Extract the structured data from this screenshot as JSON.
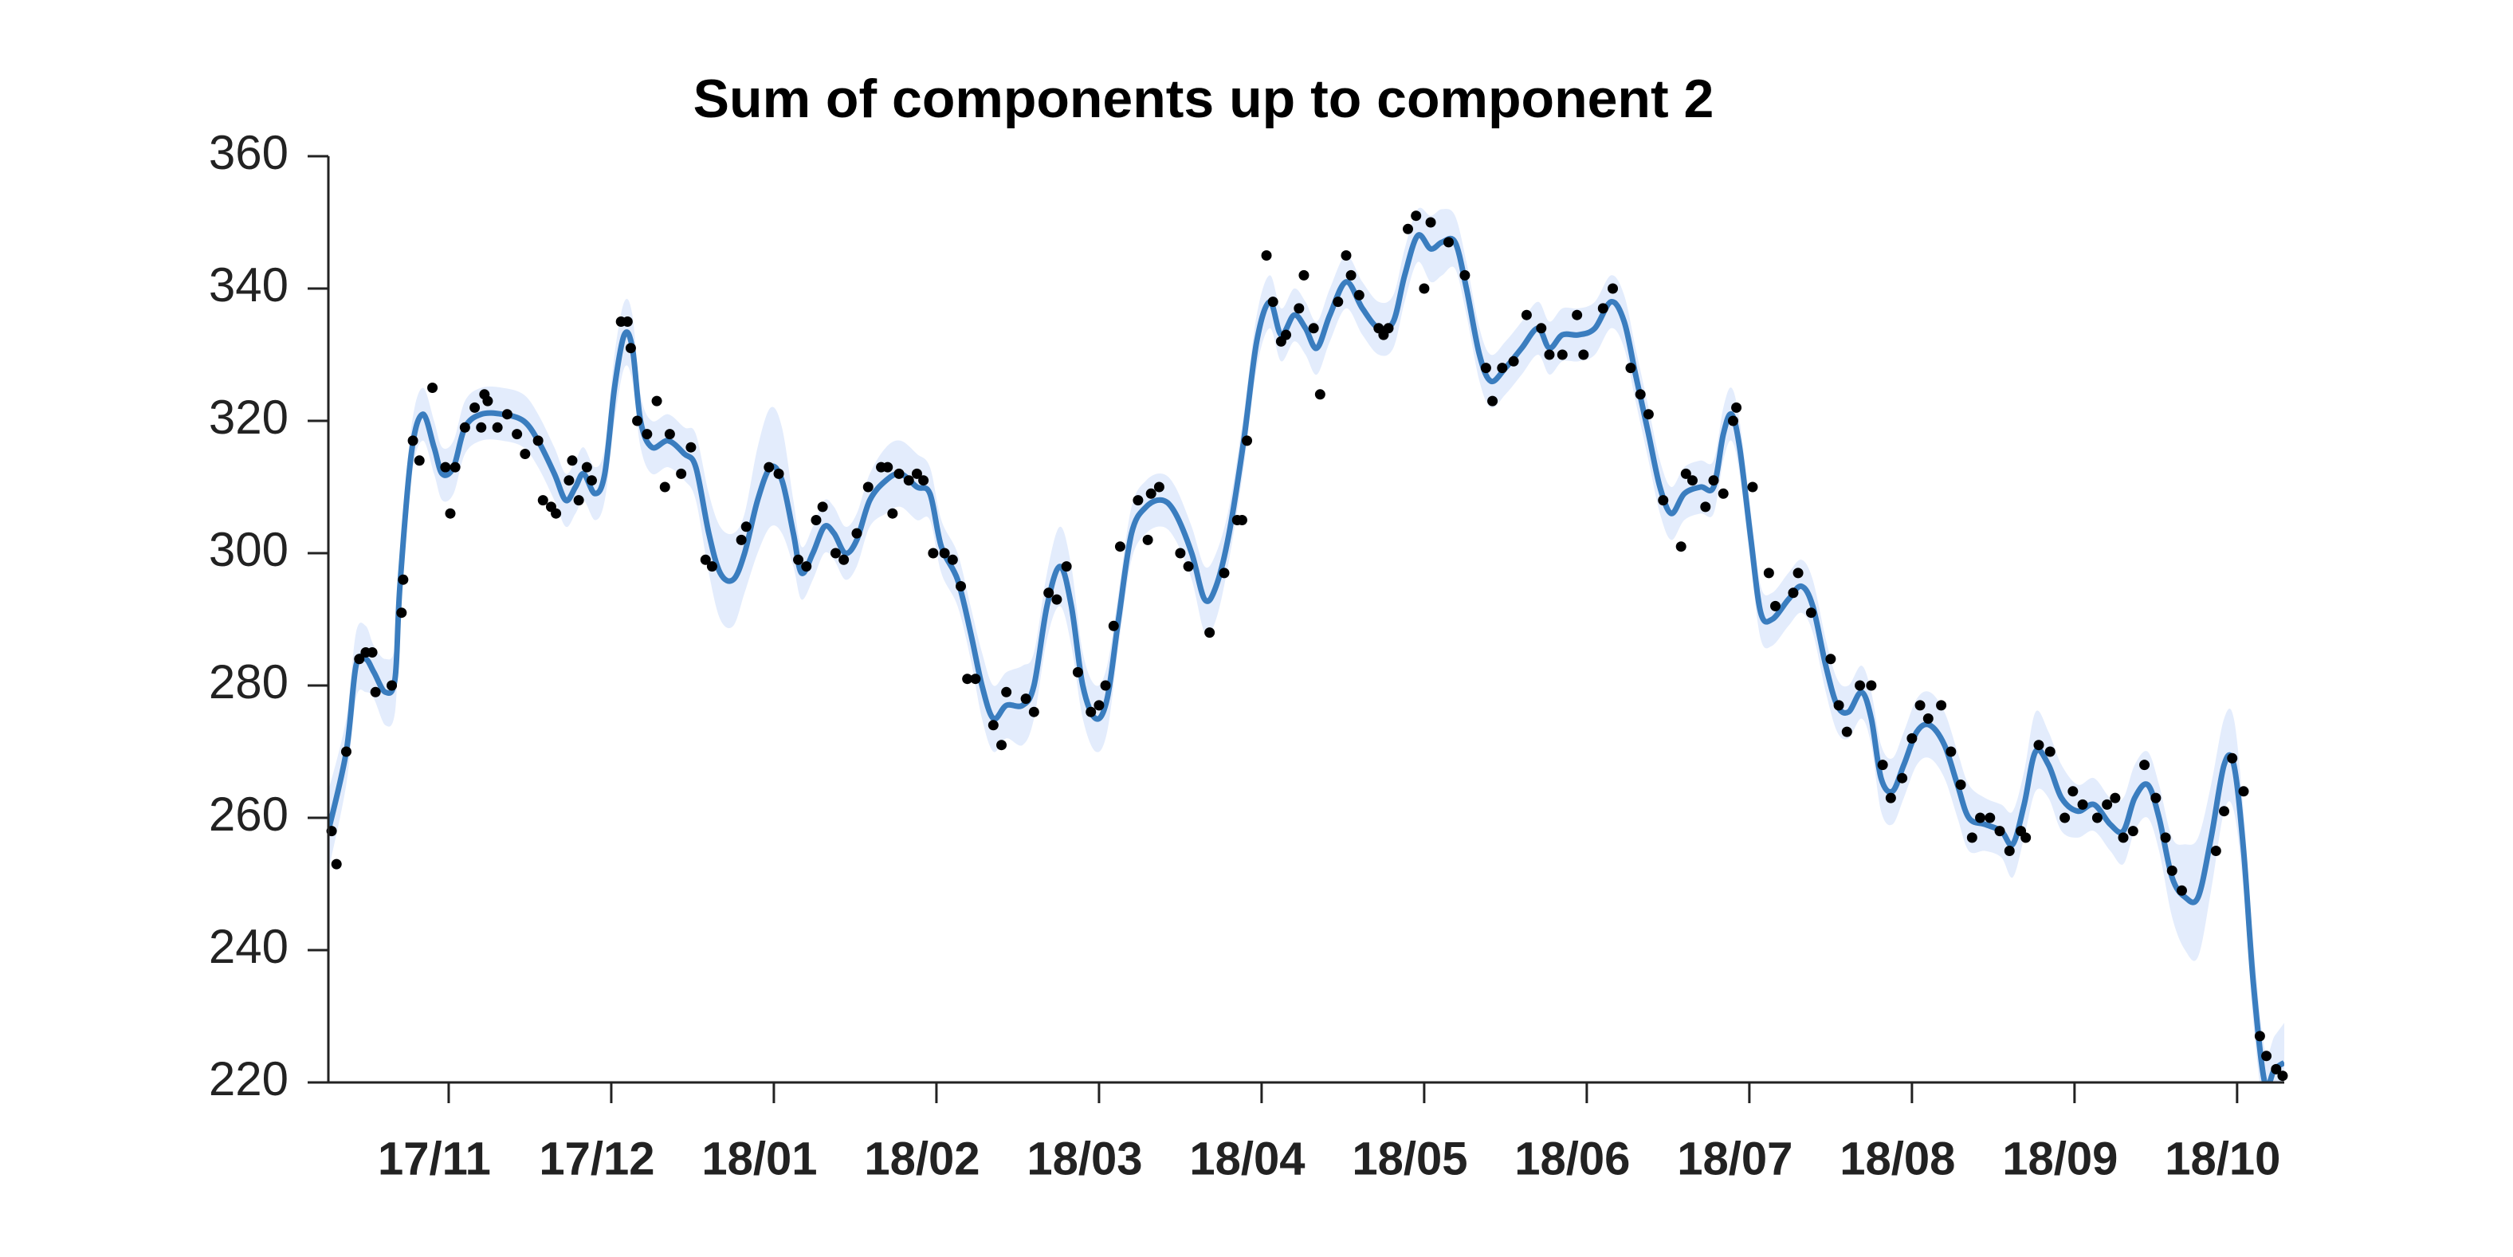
{
  "chart_data": {
    "type": "line",
    "title": "Sum of components up to component 2",
    "xlim": [
      10.26,
      22.29
    ],
    "xticks": [
      {
        "value": 11,
        "label": "17/11"
      },
      {
        "value": 12,
        "label": "17/12"
      },
      {
        "value": 13,
        "label": "18/01"
      },
      {
        "value": 14,
        "label": "18/02"
      },
      {
        "value": 15,
        "label": "18/03"
      },
      {
        "value": 16,
        "label": "18/04"
      },
      {
        "value": 17,
        "label": "18/05"
      },
      {
        "value": 18,
        "label": "18/06"
      },
      {
        "value": 19,
        "label": "18/07"
      },
      {
        "value": 20,
        "label": "18/08"
      },
      {
        "value": 21,
        "label": "18/09"
      },
      {
        "value": 22,
        "label": "18/10"
      }
    ],
    "ylim": [
      220,
      360
    ],
    "yticks": [
      220,
      240,
      260,
      280,
      300,
      320,
      340,
      360
    ],
    "series": [
      {
        "color": "#3a7dbf",
        "band_color": "#e3ecfc",
        "x": [
          10.26,
          10.37,
          10.43,
          10.49,
          10.54,
          10.61,
          10.67,
          10.7,
          10.77,
          10.84,
          10.91,
          10.96,
          11.03,
          11.1,
          11.2,
          11.33,
          11.46,
          11.55,
          11.65,
          11.72,
          11.78,
          11.83,
          11.9,
          11.96,
          12.02,
          12.08,
          12.13,
          12.18,
          12.25,
          12.35,
          12.45,
          12.52,
          12.6,
          12.67,
          12.75,
          12.82,
          12.9,
          12.98,
          13.05,
          13.12,
          13.17,
          13.24,
          13.31,
          13.37,
          13.44,
          13.51,
          13.59,
          13.69,
          13.78,
          13.88,
          13.96,
          14.03,
          14.13,
          14.21,
          14.28,
          14.35,
          14.43,
          14.53,
          14.6,
          14.68,
          14.76,
          14.83,
          14.9,
          14.98,
          15.05,
          15.12,
          15.2,
          15.29,
          15.39,
          15.47,
          15.57,
          15.65,
          15.72,
          15.8,
          15.89,
          15.97,
          16.05,
          16.12,
          16.2,
          16.27,
          16.34,
          16.42,
          16.52,
          16.62,
          16.72,
          16.81,
          16.88,
          16.96,
          17.04,
          17.11,
          17.19,
          17.26,
          17.34,
          17.41,
          17.5,
          17.6,
          17.7,
          17.77,
          17.85,
          17.95,
          18.05,
          18.15,
          18.23,
          18.3,
          18.38,
          18.45,
          18.52,
          18.6,
          18.7,
          18.78,
          18.84,
          18.89,
          18.94,
          19.01,
          19.07,
          19.14,
          19.24,
          19.32,
          19.39,
          19.47,
          19.54,
          19.61,
          19.69,
          19.75,
          19.81,
          19.88,
          19.95,
          20.03,
          20.11,
          20.2,
          20.28,
          20.35,
          20.45,
          20.55,
          20.62,
          20.69,
          20.76,
          20.84,
          20.92,
          21.02,
          21.12,
          21.22,
          21.3,
          21.37,
          21.45,
          21.52,
          21.6,
          21.68,
          21.76,
          21.84,
          21.92,
          21.98,
          22.04,
          22.1,
          22.17,
          22.23,
          22.29
        ],
        "values": [
          258,
          270,
          283,
          284,
          282,
          279,
          281,
          295,
          315,
          321,
          316,
          312,
          313,
          319,
          321,
          321,
          320,
          317,
          312,
          308,
          310,
          312,
          309,
          312,
          325,
          333,
          331,
          320,
          316,
          317,
          315,
          313,
          303,
          297,
          296,
          300,
          308,
          313,
          311,
          303,
          297,
          300,
          304,
          303,
          300,
          302,
          308,
          311,
          312,
          310,
          309,
          301,
          296,
          288,
          280,
          275,
          277,
          277,
          280,
          292,
          298,
          292,
          280,
          275,
          278,
          290,
          303,
          307,
          308,
          306,
          300,
          293,
          295,
          303,
          317,
          332,
          338,
          333,
          336,
          334,
          331,
          336,
          341,
          337,
          334,
          335,
          342,
          348,
          346,
          347,
          347,
          340,
          330,
          326,
          328,
          331,
          334,
          331,
          333,
          333,
          334,
          338,
          335,
          327,
          318,
          310,
          306,
          309,
          310,
          310,
          318,
          321,
          316,
          302,
          291,
          290,
          293,
          295,
          292,
          283,
          277,
          276,
          279,
          275,
          266,
          264,
          268,
          273,
          274,
          271,
          265,
          260,
          259,
          258,
          256,
          262,
          270,
          268,
          263,
          261,
          262,
          259,
          258,
          263,
          265,
          260,
          251,
          248,
          248,
          257,
          268,
          268,
          255,
          235,
          220,
          222,
          223
        ],
        "upper": [
          264,
          275,
          288,
          289,
          286,
          284,
          286,
          300,
          319,
          325,
          320,
          316,
          317,
          323,
          325,
          325,
          324,
          321,
          316,
          312,
          314,
          316,
          313,
          316,
          330,
          338,
          336,
          324,
          320,
          321,
          319,
          318,
          309,
          304,
          303,
          306,
          316,
          322,
          319,
          308,
          301,
          304,
          308,
          307,
          304,
          306,
          312,
          316,
          317,
          315,
          313,
          305,
          300,
          292,
          285,
          280,
          282,
          283,
          285,
          297,
          304,
          298,
          285,
          280,
          283,
          294,
          307,
          311,
          312,
          310,
          304,
          298,
          300,
          307,
          321,
          336,
          342,
          337,
          340,
          338,
          335,
          340,
          345,
          341,
          338,
          339,
          346,
          352,
          351,
          352,
          351,
          344,
          334,
          330,
          332,
          335,
          338,
          335,
          337,
          337,
          338,
          342,
          339,
          331,
          322,
          314,
          310,
          313,
          314,
          314,
          322,
          325,
          320,
          306,
          295,
          294,
          297,
          299,
          296,
          287,
          281,
          280,
          283,
          279,
          271,
          269,
          273,
          278,
          279,
          276,
          270,
          265,
          263,
          262,
          261,
          267,
          276,
          273,
          268,
          265,
          266,
          263,
          263,
          268,
          270,
          265,
          257,
          256,
          257,
          265,
          275,
          275,
          261,
          241,
          225,
          227,
          229
        ],
        "lower": [
          252,
          265,
          278,
          279,
          278,
          274,
          276,
          290,
          311,
          317,
          312,
          308,
          309,
          315,
          317,
          317,
          316,
          313,
          308,
          304,
          306,
          308,
          305,
          308,
          320,
          328,
          326,
          316,
          312,
          313,
          311,
          308,
          297,
          290,
          289,
          294,
          300,
          304,
          303,
          298,
          293,
          296,
          300,
          299,
          296,
          298,
          304,
          306,
          307,
          305,
          305,
          297,
          292,
          284,
          275,
          270,
          272,
          271,
          275,
          287,
          292,
          286,
          275,
          270,
          273,
          286,
          299,
          303,
          304,
          302,
          296,
          288,
          290,
          299,
          313,
          328,
          334,
          329,
          332,
          330,
          327,
          332,
          337,
          333,
          330,
          331,
          338,
          344,
          341,
          342,
          343,
          336,
          326,
          322,
          324,
          327,
          330,
          327,
          329,
          329,
          330,
          334,
          331,
          323,
          314,
          306,
          302,
          305,
          306,
          306,
          314,
          317,
          312,
          298,
          287,
          286,
          289,
          291,
          288,
          279,
          273,
          272,
          275,
          271,
          261,
          259,
          263,
          268,
          269,
          266,
          260,
          255,
          255,
          254,
          251,
          257,
          264,
          263,
          258,
          257,
          258,
          255,
          253,
          258,
          260,
          255,
          245,
          240,
          239,
          249,
          261,
          261,
          249,
          229,
          215,
          217,
          217
        ]
      },
      {
        "type": "scatter",
        "color": "#000000",
        "x": [
          10.28,
          10.31,
          10.37,
          10.45,
          10.49,
          10.53,
          10.55,
          10.65,
          10.71,
          10.72,
          10.78,
          10.82,
          10.9,
          10.98,
          11.01,
          11.04,
          11.1,
          11.16,
          11.2,
          11.22,
          11.24,
          11.3,
          11.36,
          11.42,
          11.47,
          11.55,
          11.58,
          11.63,
          11.66,
          11.74,
          11.76,
          11.8,
          11.85,
          11.88,
          12.06,
          12.1,
          12.12,
          12.16,
          12.22,
          12.28,
          12.33,
          12.36,
          12.43,
          12.49,
          12.58,
          12.62,
          12.8,
          12.83,
          12.97,
          13.03,
          13.15,
          13.2,
          13.26,
          13.3,
          13.38,
          13.43,
          13.51,
          13.58,
          13.66,
          13.7,
          13.73,
          13.77,
          13.83,
          13.88,
          13.92,
          13.98,
          14.05,
          14.1,
          14.15,
          14.19,
          14.24,
          14.35,
          14.4,
          14.43,
          14.55,
          14.6,
          14.69,
          14.74,
          14.8,
          14.87,
          14.95,
          15.0,
          15.04,
          15.09,
          15.13,
          15.24,
          15.3,
          15.32,
          15.37,
          15.5,
          15.55,
          15.68,
          15.77,
          15.85,
          15.88,
          15.91,
          16.03,
          16.07,
          16.12,
          16.15,
          16.23,
          16.26,
          16.32,
          16.36,
          16.47,
          16.52,
          16.55,
          16.6,
          16.72,
          16.75,
          16.78,
          16.9,
          16.95,
          17.0,
          17.04,
          17.15,
          17.25,
          17.38,
          17.42,
          17.48,
          17.55,
          17.63,
          17.72,
          17.77,
          17.85,
          17.94,
          17.98,
          18.1,
          18.16,
          18.27,
          18.33,
          18.38,
          18.47,
          18.58,
          18.61,
          18.65,
          18.73,
          18.78,
          18.84,
          18.9,
          18.92,
          19.02,
          19.12,
          19.16,
          19.27,
          19.3,
          19.38,
          19.5,
          19.55,
          19.6,
          19.68,
          19.75,
          19.82,
          19.87,
          19.94,
          20.0,
          20.05,
          20.1,
          20.18,
          20.24,
          20.3,
          20.37,
          20.42,
          20.48,
          20.54,
          20.6,
          20.67,
          20.7,
          20.78,
          20.85,
          20.94,
          20.99,
          21.05,
          21.14,
          21.2,
          21.25,
          21.3,
          21.36,
          21.43,
          21.5,
          21.56,
          21.6,
          21.66,
          21.87,
          21.92,
          21.97,
          22.04,
          22.14,
          22.18,
          22.24,
          22.28
        ],
        "values": [
          258,
          253,
          270,
          284,
          285,
          285,
          279,
          280,
          291,
          296,
          317,
          314,
          325,
          313,
          306,
          313,
          319,
          322,
          319,
          324,
          323,
          319,
          321,
          318,
          315,
          317,
          308,
          307,
          306,
          311,
          314,
          308,
          313,
          311,
          335,
          335,
          331,
          320,
          318,
          323,
          310,
          318,
          312,
          316,
          299,
          298,
          302,
          304,
          313,
          312,
          299,
          298,
          305,
          307,
          300,
          299,
          303,
          310,
          313,
          313,
          306,
          312,
          311,
          312,
          311,
          300,
          300,
          299,
          295,
          281,
          281,
          274,
          271,
          279,
          278,
          276,
          294,
          293,
          298,
          282,
          276,
          277,
          280,
          289,
          301,
          308,
          302,
          309,
          310,
          300,
          298,
          288,
          297,
          305,
          305,
          317,
          345,
          338,
          332,
          333,
          337,
          342,
          334,
          324,
          338,
          345,
          342,
          339,
          334,
          333,
          334,
          349,
          351,
          340,
          350,
          347,
          342,
          328,
          323,
          328,
          329,
          336,
          334,
          330,
          330,
          336,
          330,
          337,
          340,
          328,
          324,
          321,
          308,
          301,
          312,
          311,
          307,
          311,
          309,
          320,
          322,
          310,
          297,
          292,
          294,
          297,
          291,
          284,
          277,
          273,
          280,
          280,
          268,
          263,
          266,
          272,
          277,
          275,
          277,
          270,
          265,
          257,
          260,
          260,
          258,
          255,
          258,
          257,
          271,
          270,
          260,
          264,
          262,
          260,
          262,
          263,
          257,
          258,
          268,
          263,
          257,
          252,
          249,
          255,
          261,
          269,
          264,
          227,
          224,
          222,
          221
        ]
      }
    ]
  }
}
